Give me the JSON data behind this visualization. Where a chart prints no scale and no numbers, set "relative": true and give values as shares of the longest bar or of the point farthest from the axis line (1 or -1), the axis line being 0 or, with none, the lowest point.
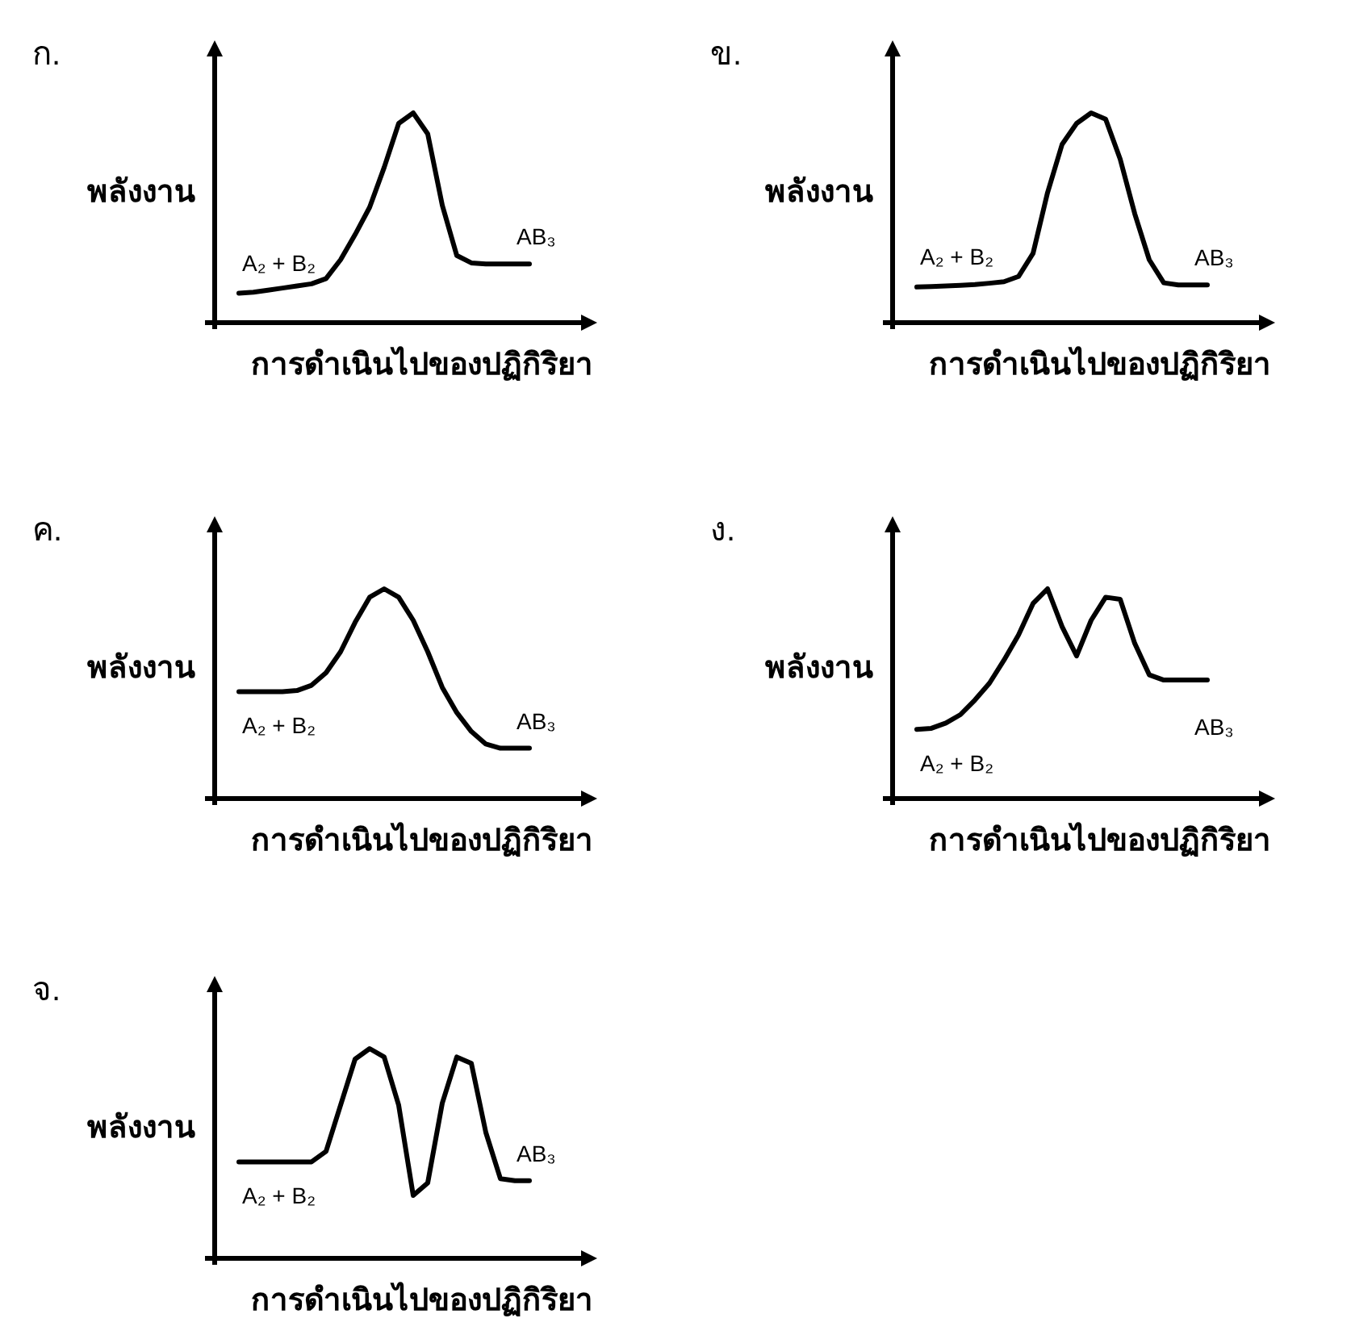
{
  "chart_data": [
    {
      "type": "line",
      "title": "ก.",
      "ylabel": "พลังงาน",
      "xlabel": "การดำเนินไปของปฏิกิริยา",
      "relative": true,
      "categories": [
        null,
        null,
        null,
        null,
        null,
        null,
        null,
        null,
        null,
        null,
        null,
        null,
        null,
        null,
        null,
        null,
        null,
        null,
        null,
        null,
        null
      ],
      "series": [
        {
          "color": "#000000",
          "values": [
            0.14,
            0.145,
            0.155,
            0.165,
            0.175,
            0.185,
            0.21,
            0.3,
            0.42,
            0.55,
            0.74,
            0.95,
            1.0,
            0.9,
            0.56,
            0.32,
            0.285,
            0.28,
            0.28,
            0.28,
            0.28
          ]
        }
      ],
      "annotations": [
        "A₂ + B₂",
        "AB₃"
      ]
    },
    {
      "type": "line",
      "title": "ข.",
      "ylabel": "พลังงาน",
      "xlabel": "การดำเนินไปของปฏิกิริยา",
      "relative": true,
      "categories": [
        null,
        null,
        null,
        null,
        null,
        null,
        null,
        null,
        null,
        null,
        null,
        null,
        null,
        null,
        null,
        null,
        null,
        null,
        null,
        null,
        null
      ],
      "series": [
        {
          "color": "#000000",
          "values": [
            0.17,
            0.172,
            0.175,
            0.178,
            0.182,
            0.188,
            0.195,
            0.22,
            0.33,
            0.62,
            0.85,
            0.95,
            1.0,
            0.97,
            0.78,
            0.52,
            0.3,
            0.19,
            0.18,
            0.18,
            0.18
          ]
        }
      ],
      "annotations": [
        "A₂ + B₂",
        "AB₃"
      ]
    },
    {
      "type": "line",
      "title": "ค.",
      "ylabel": "พลังงาน",
      "xlabel": "การดำเนินไปของปฏิกิริยา",
      "relative": true,
      "categories": [
        null,
        null,
        null,
        null,
        null,
        null,
        null,
        null,
        null,
        null,
        null,
        null,
        null,
        null,
        null,
        null,
        null,
        null,
        null,
        null,
        null
      ],
      "series": [
        {
          "color": "#000000",
          "values": [
            0.51,
            0.51,
            0.51,
            0.51,
            0.515,
            0.54,
            0.6,
            0.7,
            0.84,
            0.96,
            1.0,
            0.96,
            0.85,
            0.7,
            0.53,
            0.41,
            0.32,
            0.26,
            0.24,
            0.24,
            0.24
          ]
        }
      ],
      "annotations": [
        "A₂ + B₂",
        "AB₃"
      ]
    },
    {
      "type": "line",
      "title": "ง.",
      "ylabel": "พลังงาน",
      "xlabel": "การดำเนินไปของปฏิกิริยา",
      "relative": true,
      "categories": [
        null,
        null,
        null,
        null,
        null,
        null,
        null,
        null,
        null,
        null,
        null,
        null,
        null,
        null,
        null,
        null,
        null,
        null,
        null,
        null,
        null
      ],
      "series": [
        {
          "color": "#000000",
          "values": [
            0.33,
            0.335,
            0.36,
            0.4,
            0.47,
            0.55,
            0.66,
            0.78,
            0.93,
            1.0,
            0.82,
            0.68,
            0.85,
            0.96,
            0.95,
            0.74,
            0.59,
            0.565,
            0.565,
            0.565,
            0.565
          ]
        }
      ],
      "annotations": [
        "A₂ + B₂",
        "AB₃"
      ]
    },
    {
      "type": "line",
      "title": "จ.",
      "ylabel": "พลังงาน",
      "xlabel": "การดำเนินไปของปฏิกิริยา",
      "relative": true,
      "categories": [
        null,
        null,
        null,
        null,
        null,
        null,
        null,
        null,
        null,
        null,
        null,
        null,
        null,
        null,
        null,
        null,
        null,
        null,
        null,
        null,
        null
      ],
      "series": [
        {
          "color": "#000000",
          "values": [
            0.46,
            0.46,
            0.46,
            0.46,
            0.46,
            0.46,
            0.51,
            0.73,
            0.95,
            1.0,
            0.96,
            0.73,
            0.3,
            0.36,
            0.74,
            0.96,
            0.93,
            0.6,
            0.38,
            0.37,
            0.37
          ]
        }
      ],
      "annotations": [
        "A₂ + B₂",
        "AB₃"
      ]
    }
  ]
}
